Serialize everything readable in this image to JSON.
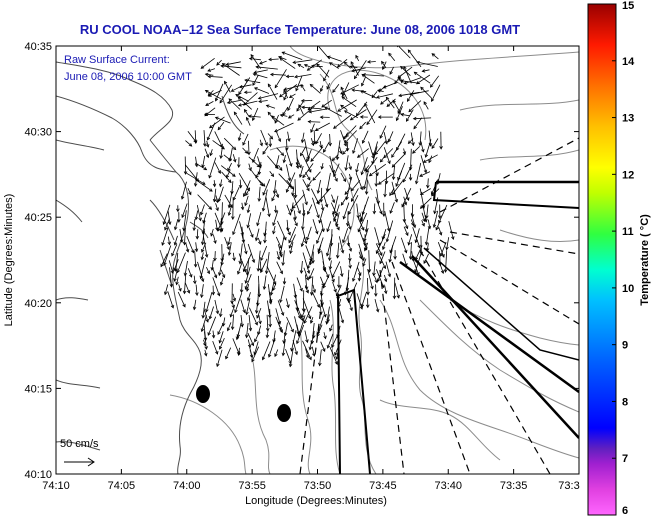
{
  "title": "RU COOL  NOAA–12  Sea Surface Temperature:  June 08, 2006 1018 GMT",
  "annotation": {
    "line1": "Raw Surface Current:",
    "line2": "June 08, 2006 10:00 GMT"
  },
  "scale_label": "50 cm/s",
  "axes": {
    "xlabel": "Longitude (Degrees:Minutes)",
    "ylabel": "Latitude (Degrees:Minutes)",
    "x_ticks": [
      "74:10",
      "74:05",
      "74:00",
      "73:55",
      "73:50",
      "73:45",
      "73:40",
      "73:35",
      "73:3"
    ],
    "y_ticks": [
      "40:35",
      "40:30",
      "40:25",
      "40:20",
      "40:15",
      "40:10"
    ]
  },
  "colorbar": {
    "label": "Temperature ( °C)",
    "ticks": [
      "15",
      "14",
      "13",
      "12",
      "11",
      "10",
      "9",
      "8",
      "7",
      "6"
    ],
    "range": [
      6,
      15
    ]
  },
  "colors": {
    "title": "#1a1ab4",
    "frame": "#000000",
    "contour": "#888888",
    "land_outline": "#555555"
  }
}
